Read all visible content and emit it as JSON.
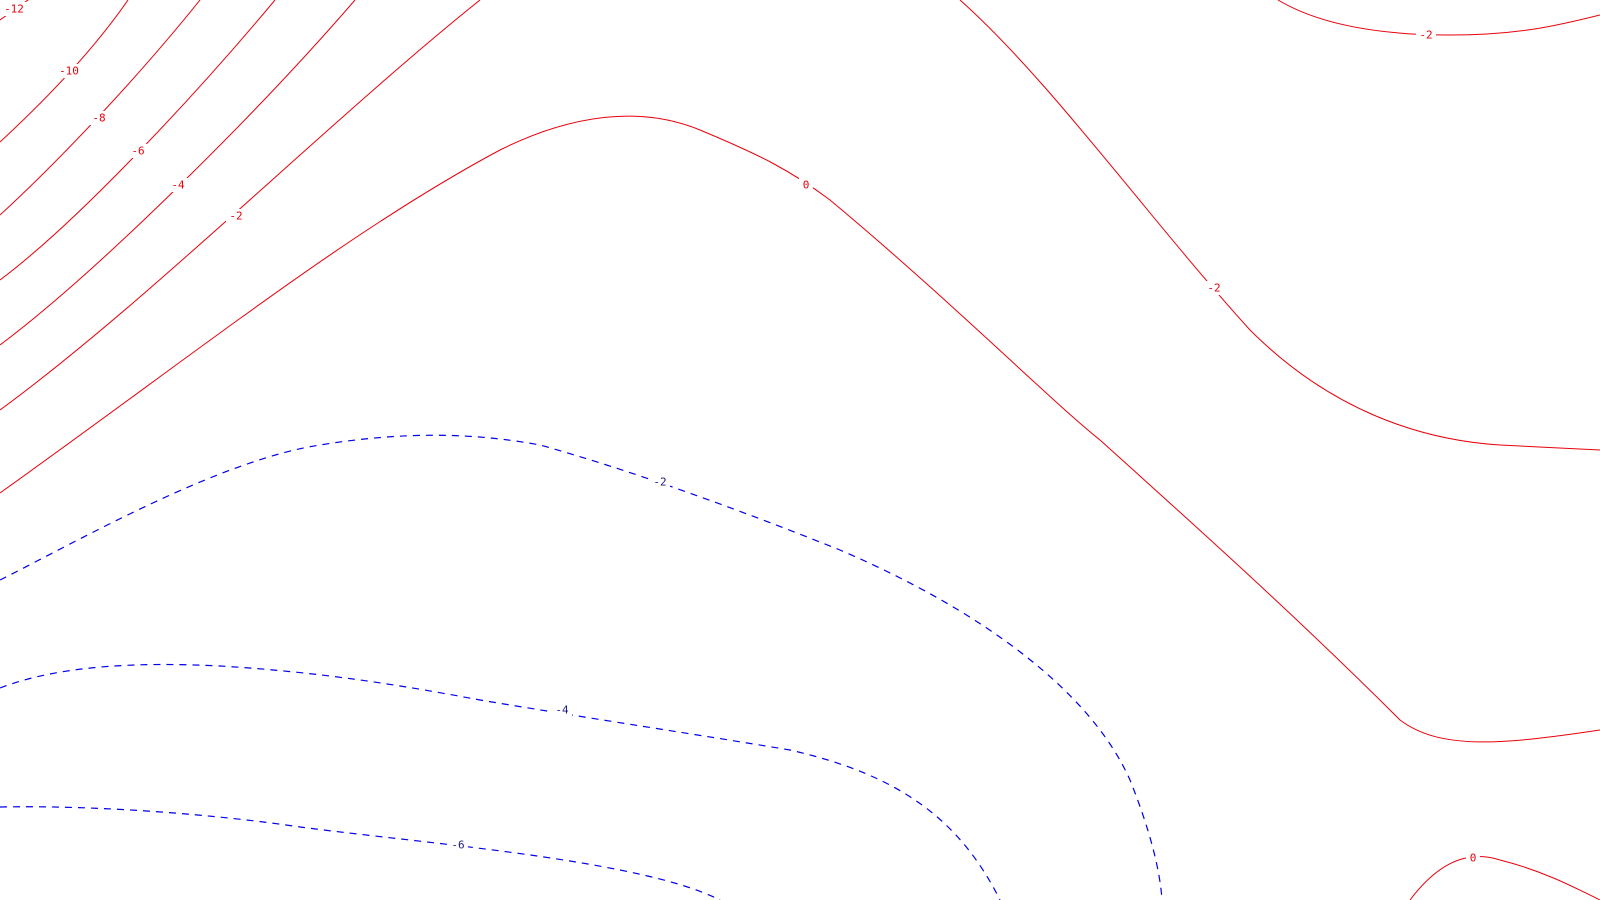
{
  "map": {
    "colors": {
      "positive": "#e8000b",
      "negative": "#0000e8",
      "background": "#ffffff"
    },
    "line_styles": {
      "red": "solid",
      "blue": "dashed"
    },
    "contours": [
      {
        "id": "red-12",
        "color": "red",
        "label": "-12"
      },
      {
        "id": "red-10",
        "color": "red",
        "label": "-10"
      },
      {
        "id": "red-8",
        "color": "red",
        "label": "-8"
      },
      {
        "id": "red-6",
        "color": "red",
        "label": "-6"
      },
      {
        "id": "red-4",
        "color": "red",
        "label": "-4"
      },
      {
        "id": "red-2-left",
        "color": "red",
        "label": "-2"
      },
      {
        "id": "red-0-main",
        "color": "red",
        "label": "0"
      },
      {
        "id": "red-2-right",
        "color": "red",
        "label": "-2"
      },
      {
        "id": "red-2-top",
        "color": "red",
        "label": "-2"
      },
      {
        "id": "red-0-bottom",
        "color": "red",
        "label": "0"
      },
      {
        "id": "blue-2",
        "color": "blue",
        "label": "-2"
      },
      {
        "id": "blue-4",
        "color": "blue",
        "label": "-4"
      },
      {
        "id": "blue-6",
        "color": "blue",
        "label": "-6"
      }
    ]
  }
}
